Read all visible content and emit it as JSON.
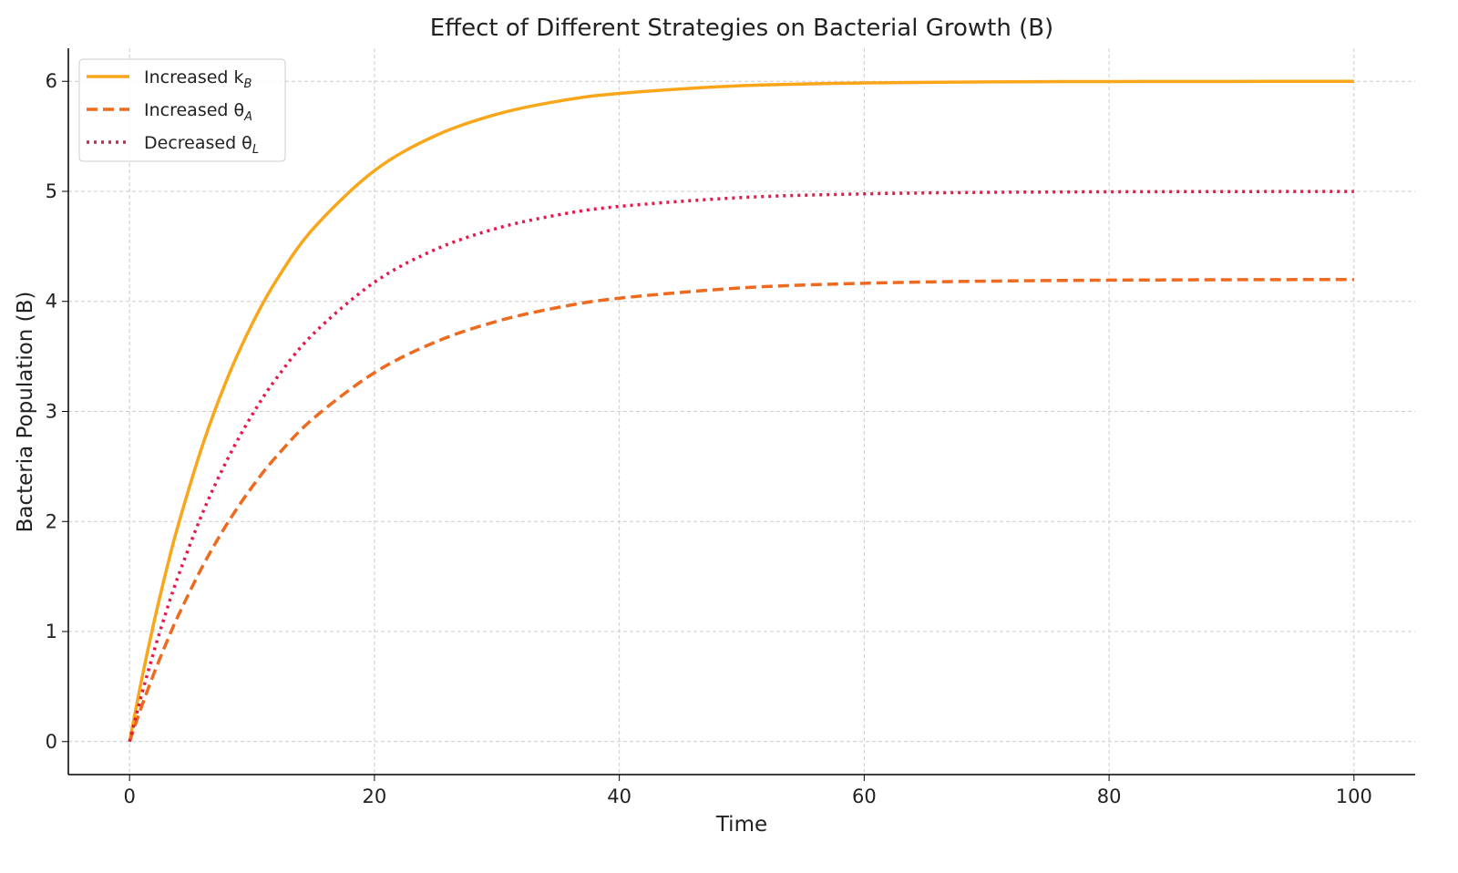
{
  "chart_data": {
    "type": "line",
    "title": "Effect of Different Strategies on Bacterial Growth (B)",
    "xlabel": "Time",
    "ylabel": "Bacteria Population (B)",
    "xlim": [
      -5,
      105
    ],
    "ylim": [
      -0.3,
      6.3
    ],
    "xticks": [
      0,
      20,
      40,
      60,
      80,
      100
    ],
    "yticks": [
      0,
      1,
      2,
      3,
      4,
      5,
      6
    ],
    "grid": true,
    "legend_position": "top-left",
    "x": [
      0,
      1,
      2,
      3,
      4,
      6,
      8,
      10,
      12,
      15,
      20,
      25,
      30,
      35,
      40,
      50,
      60,
      70,
      80,
      90,
      100
    ],
    "series": [
      {
        "name": "Increased k",
        "sub": "B",
        "color": "#f9a61a",
        "style": "solid",
        "values": [
          0,
          0.571,
          1.088,
          1.555,
          1.978,
          2.707,
          3.304,
          3.793,
          4.193,
          4.661,
          5.188,
          5.507,
          5.701,
          5.819,
          5.89,
          5.96,
          5.985,
          5.995,
          5.998,
          5.999,
          6.0
        ]
      },
      {
        "name": "Increased θ",
        "sub": "A",
        "color": "#ee6a1f",
        "style": "dashed",
        "values": [
          0,
          0.323,
          0.621,
          0.896,
          1.15,
          1.601,
          1.985,
          2.313,
          2.592,
          2.935,
          3.352,
          3.632,
          3.819,
          3.945,
          4.029,
          4.123,
          4.165,
          4.184,
          4.193,
          4.197,
          4.199
        ]
      },
      {
        "name": "Decreased θ",
        "sub": "L",
        "color": "#e8174b",
        "style": "dotted",
        "values": [
          0,
          0.431,
          0.824,
          1.183,
          1.512,
          2.087,
          2.566,
          2.967,
          3.302,
          3.704,
          4.174,
          4.473,
          4.664,
          4.786,
          4.863,
          4.944,
          4.977,
          4.991,
          4.996,
          4.998,
          4.999
        ]
      }
    ]
  }
}
